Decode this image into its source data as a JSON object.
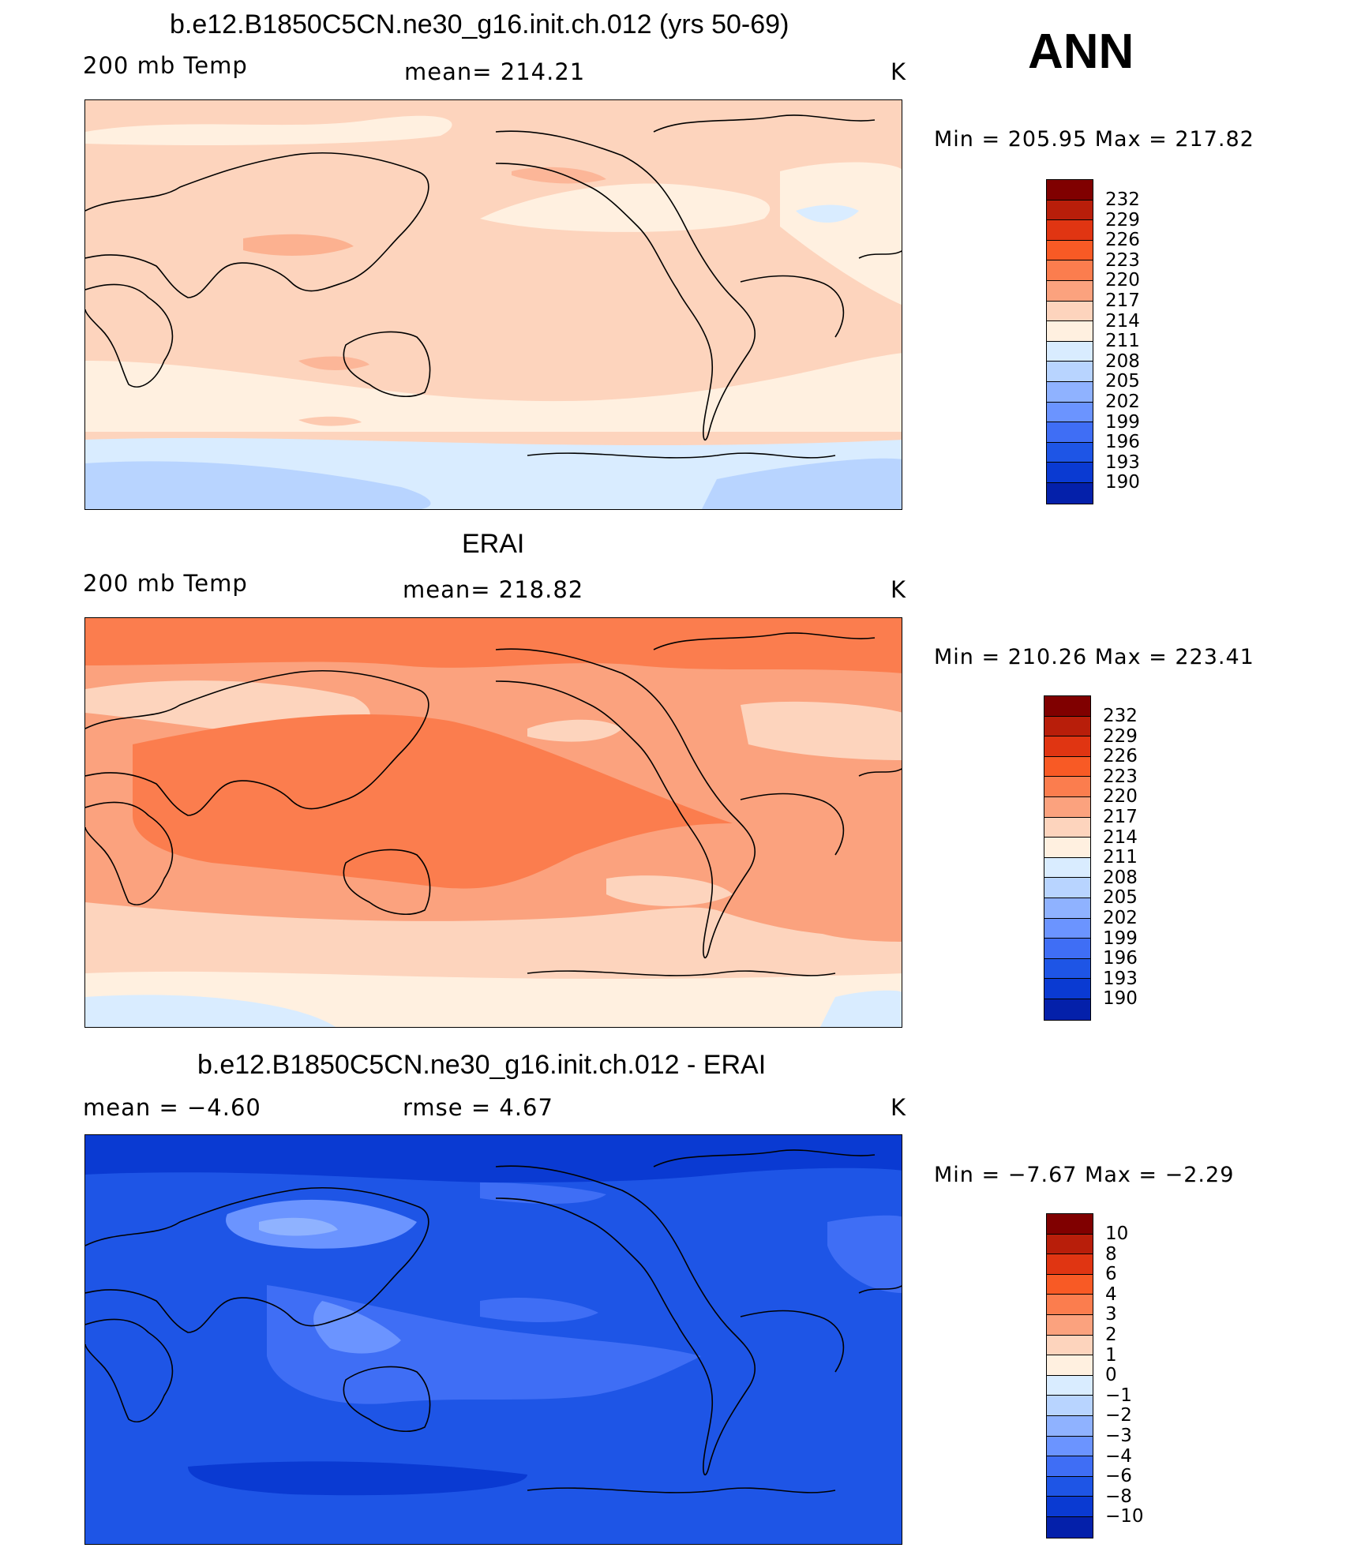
{
  "season": "ANN",
  "units": "K",
  "panels": [
    {
      "title": "b.e12.B1850C5CN.ne30_g16.init.ch.012 (yrs 50-69)",
      "variable": "200 mb Temp",
      "stat": "mean=  214.21",
      "units": "K",
      "minmax": "Min  =  205.95  Max  =  217.82",
      "colorbar_labels": [
        "232",
        "229",
        "226",
        "223",
        "220",
        "217",
        "214",
        "211",
        "208",
        "205",
        "202",
        "199",
        "196",
        "193",
        "190"
      ],
      "background_color": "#fdd4bd"
    },
    {
      "title": "ERAI",
      "variable": "200 mb Temp",
      "stat": "mean=  218.82",
      "units": "K",
      "minmax": "Min  =  210.26  Max  =  223.41",
      "colorbar_labels": [
        "232",
        "229",
        "226",
        "223",
        "220",
        "217",
        "214",
        "211",
        "208",
        "205",
        "202",
        "199",
        "196",
        "193",
        "190"
      ],
      "background_color": "#fba27e"
    },
    {
      "title": "b.e12.B1850C5CN.ne30_g16.init.ch.012 - ERAI",
      "stat_left": "mean  =    −4.60",
      "stat": "rmse  =      4.67",
      "units": "K",
      "minmax": "Min  =    −7.67  Max  =    −2.29",
      "colorbar_labels": [
        "10",
        "8",
        "6",
        "4",
        "3",
        "2",
        "1",
        "0",
        "−1",
        "−2",
        "−3",
        "−4",
        "−6",
        "−8",
        "−10"
      ],
      "background_color": "#1e55e6"
    }
  ],
  "colorbar_colors": [
    "#800000",
    "#b81e0a",
    "#e03512",
    "#f85a25",
    "#fb7d4e",
    "#fba27e",
    "#fdd4bd",
    "#fff0e0",
    "#d9ecff",
    "#b8d4ff",
    "#8fb2ff",
    "#6b94ff",
    "#3f6ef5",
    "#1e55e6",
    "#0a3ad2",
    "#0420aa",
    "#00107f"
  ]
}
